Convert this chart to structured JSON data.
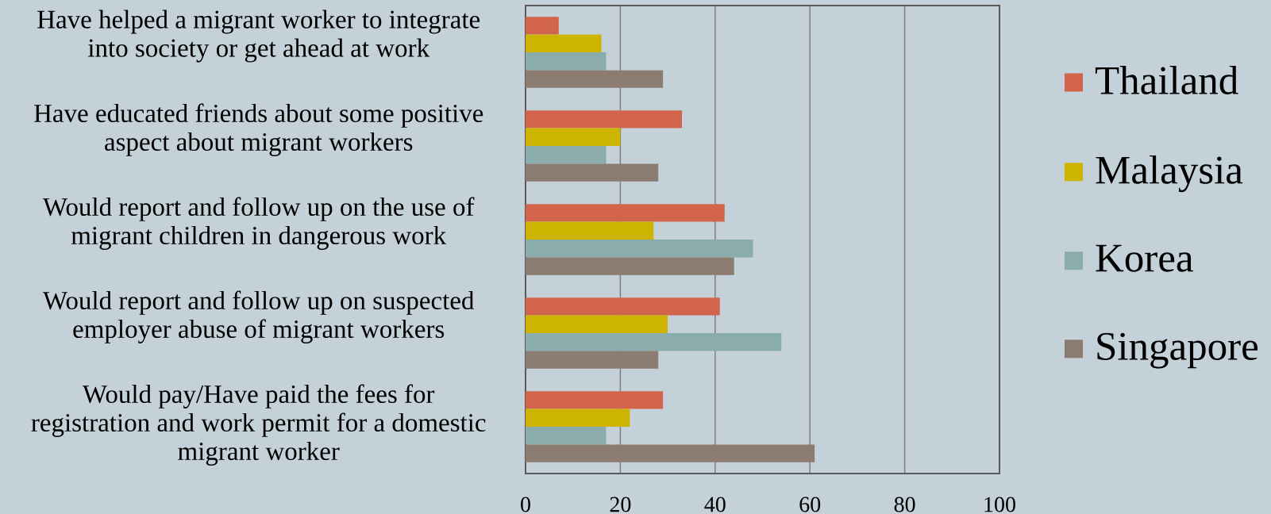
{
  "chart_data": {
    "type": "bar",
    "orientation": "horizontal",
    "categories": [
      "Have helped a migrant worker to integrate into society or get ahead at work",
      "Have educated friends about some positive aspect about migrant workers",
      "Would report and follow up on the use of migrant children in dangerous work",
      "Would report and follow up on suspected employer abuse of migrant workers",
      "Would pay/Have paid the fees for registration and work permit for a domestic migrant worker"
    ],
    "series": [
      {
        "name": "Thailand",
        "color": "#d1644a",
        "values": [
          7,
          33,
          42,
          41,
          29
        ]
      },
      {
        "name": "Malaysia",
        "color": "#ccb400",
        "values": [
          16,
          20,
          27,
          30,
          22
        ]
      },
      {
        "name": "Korea",
        "color": "#8aacad",
        "values": [
          17,
          17,
          48,
          54,
          17
        ]
      },
      {
        "name": "Singapore",
        "color": "#8b7b70",
        "values": [
          29,
          28,
          44,
          28,
          61
        ]
      }
    ],
    "xlim": [
      0,
      100
    ],
    "xticks": [
      0,
      20,
      40,
      60,
      80,
      100
    ],
    "grid": "x",
    "legend": "right"
  }
}
